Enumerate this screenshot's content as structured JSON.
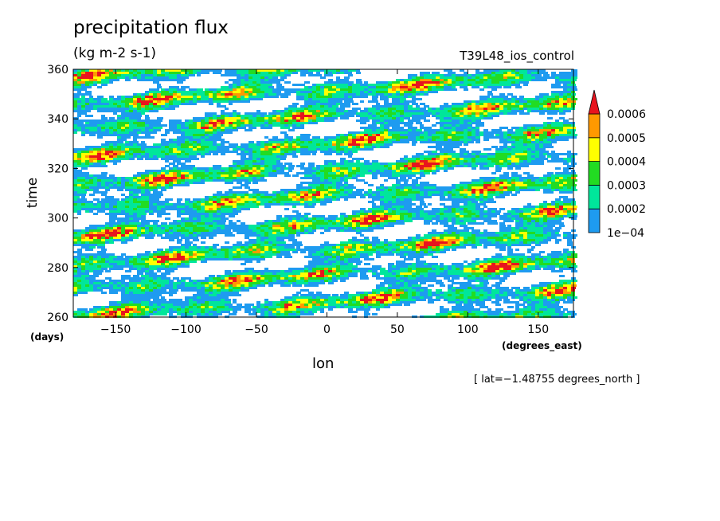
{
  "chart_data": {
    "type": "heatmap",
    "title": "precipitation flux",
    "units": "(kg m-2 s-1)",
    "run_name": "T39L48_ios_control",
    "xlabel": "lon",
    "ylabel": "time",
    "x_unit": "(degrees_east)",
    "y_unit": "(days)",
    "xlim": [
      -180,
      175
    ],
    "ylim": [
      260,
      360
    ],
    "x_ticks": [
      -150,
      -100,
      -50,
      0,
      50,
      100,
      150
    ],
    "x_tick_labels": [
      "−150",
      "−100",
      "−50",
      "0",
      "50",
      "100",
      "150"
    ],
    "y_ticks": [
      260,
      280,
      300,
      320,
      340,
      360
    ],
    "y_tick_labels": [
      "260",
      "280",
      "300",
      "320",
      "340",
      "360"
    ],
    "colorbar": {
      "levels": [
        0.0001,
        0.0002,
        0.0003,
        0.0004,
        0.0005,
        0.0006
      ],
      "labels": [
        "1e−04",
        "0.0002",
        "0.0003",
        "0.0004",
        "0.0005",
        "0.0006"
      ],
      "colors": [
        "#1e9bf0",
        "#00e69b",
        "#22dc22",
        "#ffff00",
        "#ff9900",
        "#e8141e"
      ],
      "extend": "max"
    },
    "footnote": "[ lat=−1.48755 degrees_north ]",
    "grid": false
  }
}
